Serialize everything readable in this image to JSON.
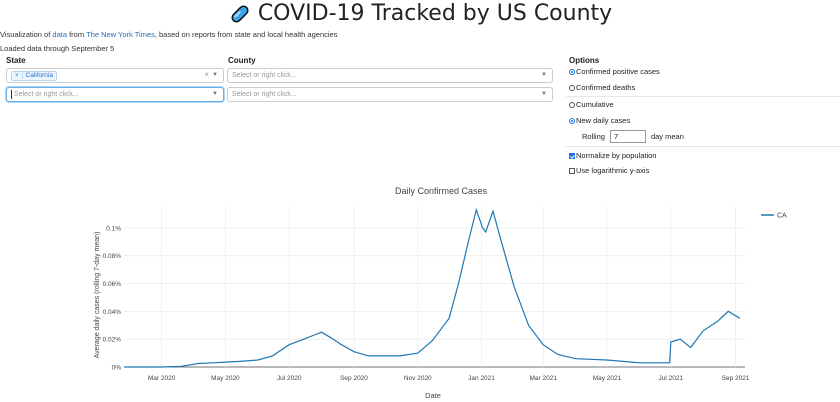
{
  "header": {
    "title": "COVID-19 Tracked by US County",
    "subtitle_pre": "Visualization of ",
    "subtitle_link1": "data",
    "subtitle_mid": " from ",
    "subtitle_link2": "The New York Times",
    "subtitle_post": ", based on reports from state and local health agencies",
    "loaded": "Loaded data through September 5"
  },
  "filters": {
    "state_label": "State",
    "county_label": "County",
    "state_tag": "California",
    "placeholder": "Select or right click..."
  },
  "options": {
    "label": "Options",
    "metric": [
      "Confirmed positive cases",
      "Confirmed deaths"
    ],
    "mode": [
      "Cumulative",
      "New daily cases"
    ],
    "rolling_label": "Rolling",
    "rolling_value": "7",
    "rolling_suffix": "day mean",
    "normalize": "Normalize by population",
    "log": "Use logarithmic y-axis"
  },
  "colors": {
    "accent": "#1a73e8",
    "series": "#1f77b4",
    "link": "#2a6ebb"
  },
  "chart_data": {
    "type": "line",
    "title": "Daily Confirmed Cases",
    "xlabel": "Date",
    "ylabel": "Average daily cases (rolling 7-day mean)",
    "x_ticks": [
      "Mar 2020",
      "May 2020",
      "Jul 2020",
      "Sep 2020",
      "Nov 2020",
      "Jan 2021",
      "Mar 2021",
      "May 2021",
      "Jul 2021",
      "Sep 2021"
    ],
    "y_ticks": [
      "0%",
      "0.02%",
      "0.04%",
      "0.06%",
      "0.08%",
      "0.1%"
    ],
    "ylim": [
      0,
      0.115
    ],
    "legend_position": "top-right",
    "series": [
      {
        "name": "CA",
        "points": [
          [
            "2020-01-25",
            0
          ],
          [
            "2020-03-01",
            0
          ],
          [
            "2020-03-20",
            0.0005
          ],
          [
            "2020-04-05",
            0.0025
          ],
          [
            "2020-04-20",
            0.003
          ],
          [
            "2020-05-01",
            0.0035
          ],
          [
            "2020-05-15",
            0.004
          ],
          [
            "2020-06-01",
            0.005
          ],
          [
            "2020-06-15",
            0.008
          ],
          [
            "2020-07-01",
            0.016
          ],
          [
            "2020-07-15",
            0.02
          ],
          [
            "2020-07-25",
            0.023
          ],
          [
            "2020-08-01",
            0.025
          ],
          [
            "2020-08-10",
            0.021
          ],
          [
            "2020-08-20",
            0.016
          ],
          [
            "2020-09-01",
            0.011
          ],
          [
            "2020-09-15",
            0.008
          ],
          [
            "2020-10-01",
            0.008
          ],
          [
            "2020-10-15",
            0.008
          ],
          [
            "2020-11-01",
            0.01
          ],
          [
            "2020-11-15",
            0.019
          ],
          [
            "2020-12-01",
            0.035
          ],
          [
            "2020-12-10",
            0.06
          ],
          [
            "2020-12-20",
            0.092
          ],
          [
            "2020-12-27",
            0.113
          ],
          [
            "2021-01-02",
            0.1
          ],
          [
            "2021-01-05",
            0.097
          ],
          [
            "2021-01-12",
            0.112
          ],
          [
            "2021-01-20",
            0.09
          ],
          [
            "2021-02-01",
            0.058
          ],
          [
            "2021-02-15",
            0.03
          ],
          [
            "2021-03-01",
            0.016
          ],
          [
            "2021-03-15",
            0.009
          ],
          [
            "2021-04-01",
            0.006
          ],
          [
            "2021-05-01",
            0.005
          ],
          [
            "2021-06-01",
            0.003
          ],
          [
            "2021-06-30",
            0.003
          ],
          [
            "2021-07-01",
            0.018
          ],
          [
            "2021-07-10",
            0.02
          ],
          [
            "2021-07-20",
            0.014
          ],
          [
            "2021-08-01",
            0.026
          ],
          [
            "2021-08-15",
            0.033
          ],
          [
            "2021-08-25",
            0.04
          ],
          [
            "2021-09-05",
            0.035
          ]
        ]
      }
    ]
  }
}
